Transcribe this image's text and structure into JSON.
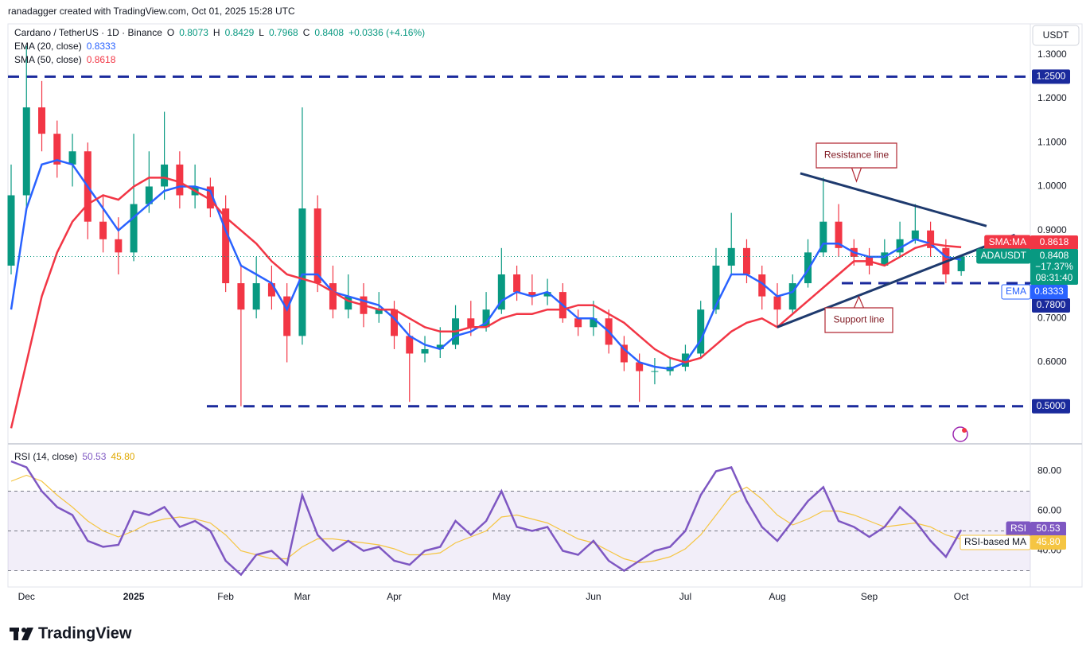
{
  "header": "ranadagger created with TradingView.com, Oct 01, 2025 15:28 UTC",
  "footer": "TradingView",
  "chart_data": [
    {
      "type": "candlestick",
      "title": "Cardano / TetherUS · 1D · Binance",
      "axis_unit": "USDT",
      "ohlc_labels": [
        "O",
        "H",
        "L",
        "C"
      ],
      "change": "+0.0336 (+4.16%)",
      "categories": [
        null,
        "Dec",
        null,
        null,
        null,
        null,
        null,
        null,
        "2025",
        null,
        null,
        null,
        null,
        null,
        "Feb",
        null,
        null,
        null,
        null,
        "Mar",
        null,
        null,
        null,
        null,
        null,
        "Apr",
        null,
        null,
        null,
        null,
        null,
        null,
        "May",
        null,
        null,
        null,
        null,
        null,
        "Jun",
        null,
        null,
        null,
        null,
        null,
        "Jul",
        null,
        null,
        null,
        null,
        null,
        "Aug",
        null,
        null,
        null,
        null,
        null,
        "Sep",
        null,
        null,
        null,
        null,
        null,
        "Oct"
      ],
      "open": [
        0.82,
        0.98,
        1.18,
        1.12,
        1.05,
        1.08,
        0.92,
        0.88,
        0.85,
        0.96,
        1.0,
        1.05,
        0.98,
        1.0,
        0.95,
        0.78,
        0.72,
        0.78,
        0.75,
        0.66,
        0.95,
        0.78,
        0.72,
        0.75,
        0.71,
        0.72,
        0.66,
        0.62,
        0.63,
        0.64,
        0.7,
        0.68,
        0.72,
        0.8,
        0.76,
        0.75,
        0.76,
        0.7,
        0.68,
        0.7,
        0.64,
        0.6,
        0.58,
        0.58,
        0.59,
        0.62,
        0.72,
        0.82,
        0.86,
        0.8,
        0.75,
        0.72,
        0.78,
        0.85,
        0.92,
        0.86,
        0.84,
        0.82,
        0.85,
        0.88,
        0.9,
        0.86,
        0.8073
      ],
      "high": [
        1.05,
        1.32,
        1.24,
        1.15,
        1.12,
        1.1,
        0.98,
        0.93,
        1.12,
        1.08,
        1.17,
        1.08,
        1.05,
        1.02,
        0.98,
        0.82,
        0.84,
        0.82,
        0.78,
        1.18,
        0.98,
        0.82,
        0.8,
        0.78,
        0.76,
        0.74,
        0.69,
        0.66,
        0.68,
        0.73,
        0.74,
        0.76,
        0.86,
        0.82,
        0.8,
        0.79,
        0.78,
        0.72,
        0.74,
        0.72,
        0.66,
        0.62,
        0.61,
        0.61,
        0.64,
        0.74,
        0.86,
        0.94,
        0.88,
        0.82,
        0.78,
        0.8,
        0.88,
        1.02,
        0.96,
        0.88,
        0.86,
        0.88,
        0.92,
        0.96,
        0.92,
        0.88,
        0.8429
      ],
      "low": [
        0.8,
        0.95,
        1.08,
        1.02,
        1.0,
        0.88,
        0.85,
        0.8,
        0.83,
        0.94,
        0.97,
        0.95,
        0.95,
        0.93,
        0.76,
        0.5,
        0.7,
        0.72,
        0.6,
        0.64,
        0.76,
        0.7,
        0.7,
        0.68,
        0.69,
        0.63,
        0.51,
        0.6,
        0.61,
        0.63,
        0.66,
        0.67,
        0.71,
        0.74,
        0.73,
        0.73,
        0.69,
        0.66,
        0.66,
        0.62,
        0.58,
        0.51,
        0.55,
        0.57,
        0.58,
        0.61,
        0.71,
        0.8,
        0.78,
        0.72,
        0.68,
        0.71,
        0.77,
        0.84,
        0.84,
        0.82,
        0.8,
        0.82,
        0.84,
        0.87,
        0.84,
        0.78,
        0.7968
      ],
      "close": [
        0.98,
        1.18,
        1.12,
        1.05,
        1.08,
        0.92,
        0.88,
        0.85,
        0.96,
        1.0,
        1.05,
        0.98,
        1.0,
        0.95,
        0.78,
        0.72,
        0.78,
        0.75,
        0.66,
        0.95,
        0.78,
        0.72,
        0.75,
        0.71,
        0.72,
        0.66,
        0.62,
        0.63,
        0.64,
        0.7,
        0.68,
        0.72,
        0.8,
        0.76,
        0.75,
        0.76,
        0.7,
        0.68,
        0.7,
        0.64,
        0.6,
        0.58,
        0.58,
        0.59,
        0.62,
        0.72,
        0.82,
        0.86,
        0.8,
        0.75,
        0.72,
        0.78,
        0.85,
        0.92,
        0.86,
        0.84,
        0.82,
        0.85,
        0.88,
        0.9,
        0.86,
        0.8,
        0.8408
      ],
      "up_color": "#089981",
      "down_color": "#f23645",
      "series": [
        {
          "name": "EMA (20, close)",
          "tag": "EMA",
          "color": "#2962ff",
          "values": [
            0.72,
            0.95,
            1.05,
            1.06,
            1.05,
            1.0,
            0.95,
            0.9,
            0.93,
            0.96,
            0.99,
            1.0,
            1.0,
            0.99,
            0.9,
            0.82,
            0.8,
            0.78,
            0.72,
            0.8,
            0.8,
            0.76,
            0.75,
            0.74,
            0.73,
            0.7,
            0.66,
            0.64,
            0.63,
            0.66,
            0.67,
            0.69,
            0.74,
            0.76,
            0.75,
            0.76,
            0.73,
            0.7,
            0.7,
            0.67,
            0.63,
            0.6,
            0.59,
            0.585,
            0.6,
            0.65,
            0.73,
            0.8,
            0.8,
            0.78,
            0.75,
            0.76,
            0.81,
            0.87,
            0.87,
            0.85,
            0.84,
            0.84,
            0.86,
            0.88,
            0.87,
            0.84,
            0.8333
          ]
        },
        {
          "name": "SMA (50, close)",
          "tag": "SMA:MA",
          "color": "#f23645",
          "values": [
            0.45,
            0.6,
            0.75,
            0.85,
            0.92,
            0.96,
            0.98,
            0.97,
            1.0,
            1.02,
            1.02,
            1.01,
            0.99,
            0.97,
            0.93,
            0.9,
            0.87,
            0.83,
            0.8,
            0.79,
            0.78,
            0.76,
            0.74,
            0.73,
            0.72,
            0.72,
            0.7,
            0.68,
            0.67,
            0.67,
            0.68,
            0.68,
            0.7,
            0.71,
            0.71,
            0.72,
            0.72,
            0.73,
            0.73,
            0.71,
            0.69,
            0.66,
            0.63,
            0.61,
            0.6,
            0.61,
            0.64,
            0.67,
            0.69,
            0.7,
            0.68,
            0.71,
            0.74,
            0.77,
            0.8,
            0.83,
            0.83,
            0.82,
            0.84,
            0.86,
            0.87,
            0.865,
            0.8618
          ]
        }
      ],
      "price_tag": {
        "label": "ADAUSDT",
        "change": "−17.37%",
        "countdown": "08:31:40"
      },
      "levels": [
        {
          "value": 1.25,
          "label": "1.2500"
        },
        {
          "value": 0.78,
          "label": "0.7800"
        },
        {
          "value": 0.5,
          "label": "0.5000"
        }
      ],
      "level_color": "#1a2a9c",
      "trendlines": [
        {
          "label": "Resistance line",
          "x": [
            51.5,
            63.65
          ],
          "y": [
            1.03,
            0.91
          ]
        },
        {
          "label": "Support line",
          "x": [
            50.0,
            65.5
          ],
          "y": [
            0.68,
            0.89
          ]
        }
      ],
      "trendline_color": "#1e3a6e",
      "ylim": [
        0.42,
        1.37
      ],
      "yticks": [
        {
          "value": 1.3,
          "label": "1.3000"
        },
        {
          "value": 1.2,
          "label": "1.2000"
        },
        {
          "value": 1.1,
          "label": "1.1000"
        },
        {
          "value": 1.0,
          "label": "1.0000"
        },
        {
          "value": 0.9,
          "label": "0.9000"
        },
        {
          "value": 0.7,
          "label": "0.7000"
        },
        {
          "value": 0.6,
          "label": "0.6000"
        }
      ],
      "grid": false
    },
    {
      "type": "line",
      "title": "RSI (14, close)",
      "series": [
        {
          "name": "RSI",
          "color": "#7e57c2",
          "values": [
            85,
            82,
            70,
            62,
            58,
            45,
            42,
            43,
            60,
            58,
            62,
            52,
            55,
            50,
            35,
            28,
            38,
            40,
            33,
            68,
            48,
            40,
            45,
            40,
            42,
            35,
            33,
            40,
            42,
            55,
            48,
            55,
            70,
            52,
            50,
            52,
            40,
            38,
            45,
            35,
            30,
            35,
            40,
            42,
            50,
            68,
            80,
            82,
            65,
            52,
            45,
            55,
            65,
            72,
            55,
            52,
            47,
            52,
            62,
            55,
            45,
            37,
            50.53
          ]
        },
        {
          "name": "RSI-based MA",
          "color": "#f5c542",
          "values": [
            75,
            78,
            75,
            68,
            62,
            55,
            50,
            47,
            50,
            54,
            56,
            57,
            56,
            54,
            48,
            40,
            38,
            36,
            36,
            42,
            46,
            46,
            45,
            44,
            43,
            41,
            38,
            38,
            39,
            44,
            47,
            50,
            57,
            58,
            56,
            54,
            50,
            46,
            44,
            40,
            36,
            34,
            35,
            37,
            41,
            48,
            58,
            68,
            72,
            66,
            58,
            53,
            56,
            60,
            60,
            58,
            55,
            52,
            53,
            54,
            52,
            48,
            45.8
          ],
          "value_labels": {
            "62": "45.80"
          }
        }
      ],
      "bands": [
        30,
        50,
        70
      ],
      "ylim": [
        23,
        93
      ],
      "yticks": [
        {
          "value": 40,
          "label": "40.00"
        },
        {
          "value": 60,
          "label": "60.00"
        },
        {
          "value": 80,
          "label": "80.00"
        }
      ],
      "grid": false
    }
  ]
}
